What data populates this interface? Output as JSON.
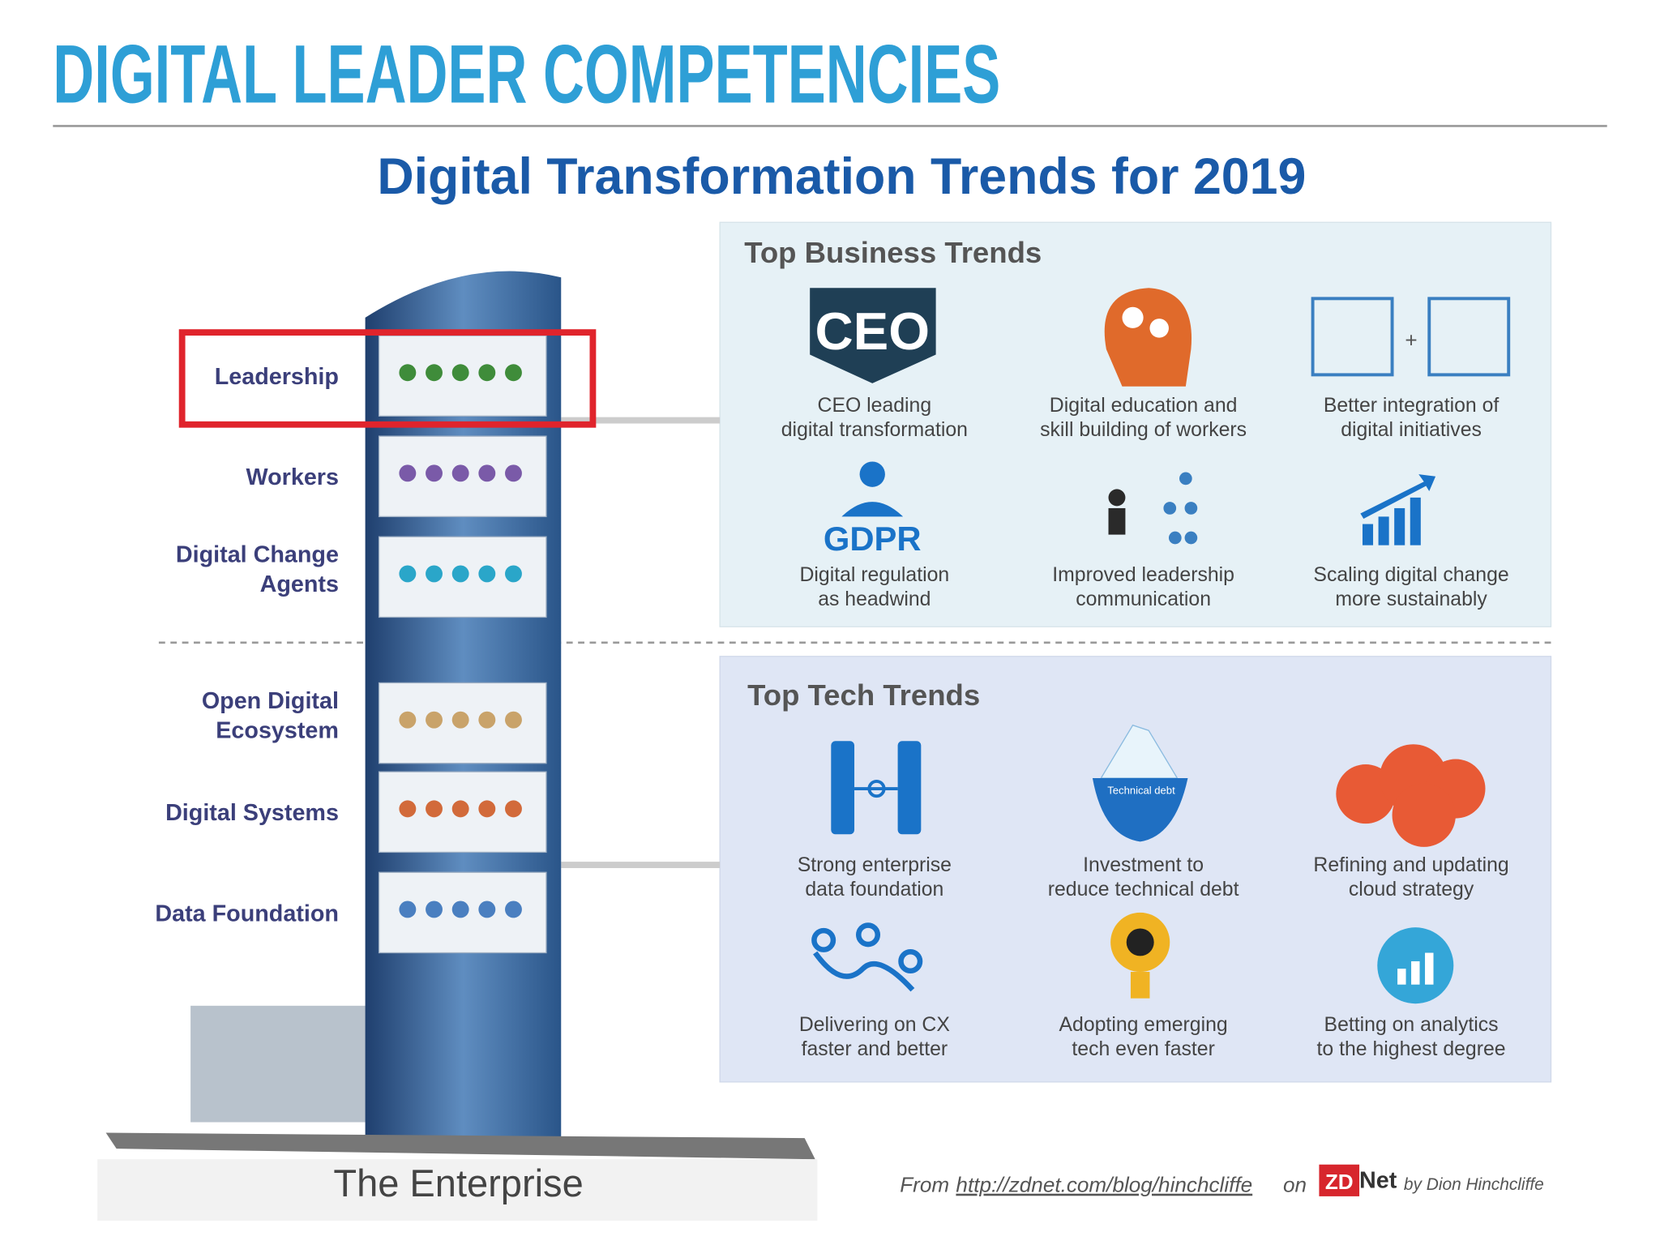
{
  "header": {
    "title": "DIGITAL LEADER COMPETENCIES"
  },
  "infographic": {
    "title": "Digital Transformation Trends for 2019"
  },
  "tower": {
    "levels": [
      [
        "Leadership"
      ],
      [
        "Workers"
      ],
      [
        "Digital Change",
        "Agents"
      ],
      [
        "Open Digital",
        "Ecosystem"
      ],
      [
        "Digital Systems"
      ],
      [
        "Data Foundation"
      ]
    ],
    "caption": "The Enterprise"
  },
  "business": {
    "title": "Top Business Trends",
    "icon_texts": {
      "ceo": "CEO",
      "gdpr": "GDPR"
    },
    "items": [
      [
        "CEO leading",
        "digital transformation"
      ],
      [
        "Digital education and",
        "skill building of workers"
      ],
      [
        "Better integration of",
        "digital initiatives"
      ],
      [
        "Digital regulation",
        "as headwind"
      ],
      [
        "Improved leadership",
        "communication"
      ],
      [
        "Scaling digital change",
        "more sustainably"
      ]
    ]
  },
  "tech": {
    "title": "Top Tech Trends",
    "icon_texts": {
      "debt": "Technical debt"
    },
    "items": [
      [
        "Strong enterprise",
        "data foundation"
      ],
      [
        "Investment to",
        "reduce technical debt"
      ],
      [
        "Refining and updating",
        "cloud strategy"
      ],
      [
        "Delivering on CX",
        "faster and better"
      ],
      [
        "Adopting emerging",
        "tech even faster"
      ],
      [
        "Betting on analytics",
        "to the highest degree"
      ]
    ]
  },
  "credit": {
    "from": "From",
    "url": "http://zdnet.com/blog/hinchcliffe",
    "on": "on",
    "logo_zd": "ZD",
    "logo_net": "Net",
    "author": "by Dion Hinchcliffe"
  }
}
